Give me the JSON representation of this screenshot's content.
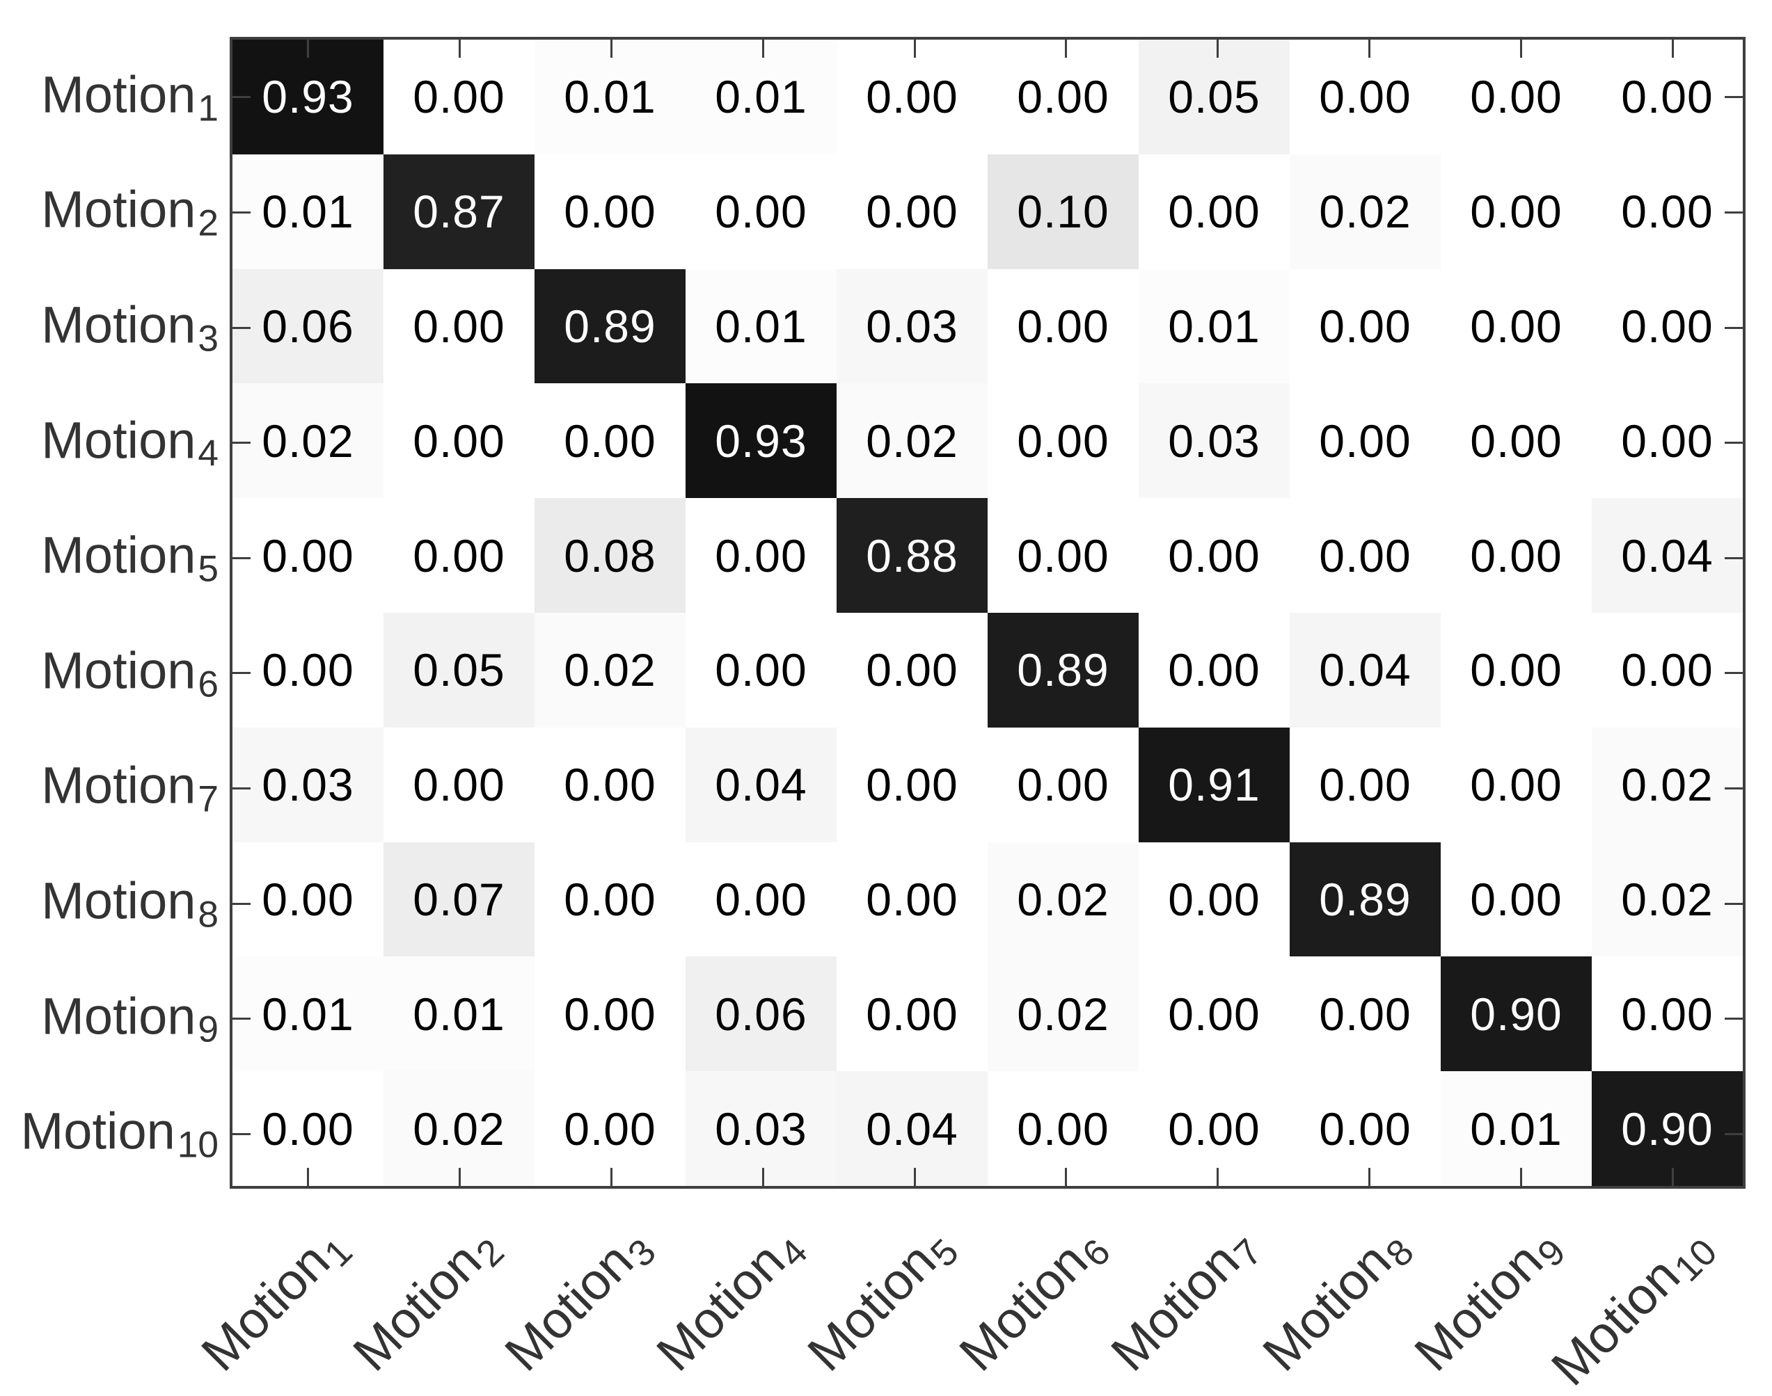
{
  "figure": {
    "kind": "confusion-matrix-heatmap",
    "title": ""
  },
  "colors": {
    "background": "#ffffff",
    "axis": "#3f3f3f",
    "label_text": "#333333",
    "cell_text_dark": "#000000",
    "cell_text_light": "#ffffff"
  },
  "chart_data": {
    "type": "heatmap",
    "colormap": "gray-reversed (0=white, 1=black)",
    "value_range": [
      0,
      1
    ],
    "cell_value_format": "0.00",
    "label_base": "Motion",
    "row_subscripts": [
      "1",
      "2",
      "3",
      "4",
      "5",
      "6",
      "7",
      "8",
      "9",
      "10"
    ],
    "col_subscripts": [
      "1",
      "2",
      "3",
      "4",
      "5",
      "6",
      "7",
      "8",
      "9",
      "10"
    ],
    "row_labels": [
      "Motion 1",
      "Motion 2",
      "Motion 3",
      "Motion 4",
      "Motion 5",
      "Motion 6",
      "Motion 7",
      "Motion 8",
      "Motion 9",
      "Motion 10"
    ],
    "col_labels": [
      "Motion 1",
      "Motion 2",
      "Motion 3",
      "Motion 4",
      "Motion 5",
      "Motion 6",
      "Motion 7",
      "Motion 8",
      "Motion 9",
      "Motion 10"
    ],
    "matrix": [
      [
        "0.93",
        "0.00",
        "0.01",
        "0.01",
        "0.00",
        "0.00",
        "0.05",
        "0.00",
        "0.00",
        "0.00"
      ],
      [
        "0.01",
        "0.87",
        "0.00",
        "0.00",
        "0.00",
        "0.10",
        "0.00",
        "0.02",
        "0.00",
        "0.00"
      ],
      [
        "0.06",
        "0.00",
        "0.89",
        "0.01",
        "0.03",
        "0.00",
        "0.01",
        "0.00",
        "0.00",
        "0.00"
      ],
      [
        "0.02",
        "0.00",
        "0.00",
        "0.93",
        "0.02",
        "0.00",
        "0.03",
        "0.00",
        "0.00",
        "0.00"
      ],
      [
        "0.00",
        "0.00",
        "0.08",
        "0.00",
        "0.88",
        "0.00",
        "0.00",
        "0.00",
        "0.00",
        "0.04"
      ],
      [
        "0.00",
        "0.05",
        "0.02",
        "0.00",
        "0.00",
        "0.89",
        "0.00",
        "0.04",
        "0.00",
        "0.00"
      ],
      [
        "0.03",
        "0.00",
        "0.00",
        "0.04",
        "0.00",
        "0.00",
        "0.91",
        "0.00",
        "0.00",
        "0.02"
      ],
      [
        "0.00",
        "0.07",
        "0.00",
        "0.00",
        "0.00",
        "0.02",
        "0.00",
        "0.89",
        "0.00",
        "0.02"
      ],
      [
        "0.01",
        "0.01",
        "0.00",
        "0.06",
        "0.00",
        "0.02",
        "0.00",
        "0.00",
        "0.90",
        "0.00"
      ],
      [
        "0.00",
        "0.02",
        "0.00",
        "0.03",
        "0.04",
        "0.00",
        "0.00",
        "0.00",
        "0.01",
        "0.90"
      ]
    ],
    "grid": "off",
    "tick_marks": "inward, all four sides, at cell centers",
    "x_tick_label_rotation_deg": 45
  }
}
